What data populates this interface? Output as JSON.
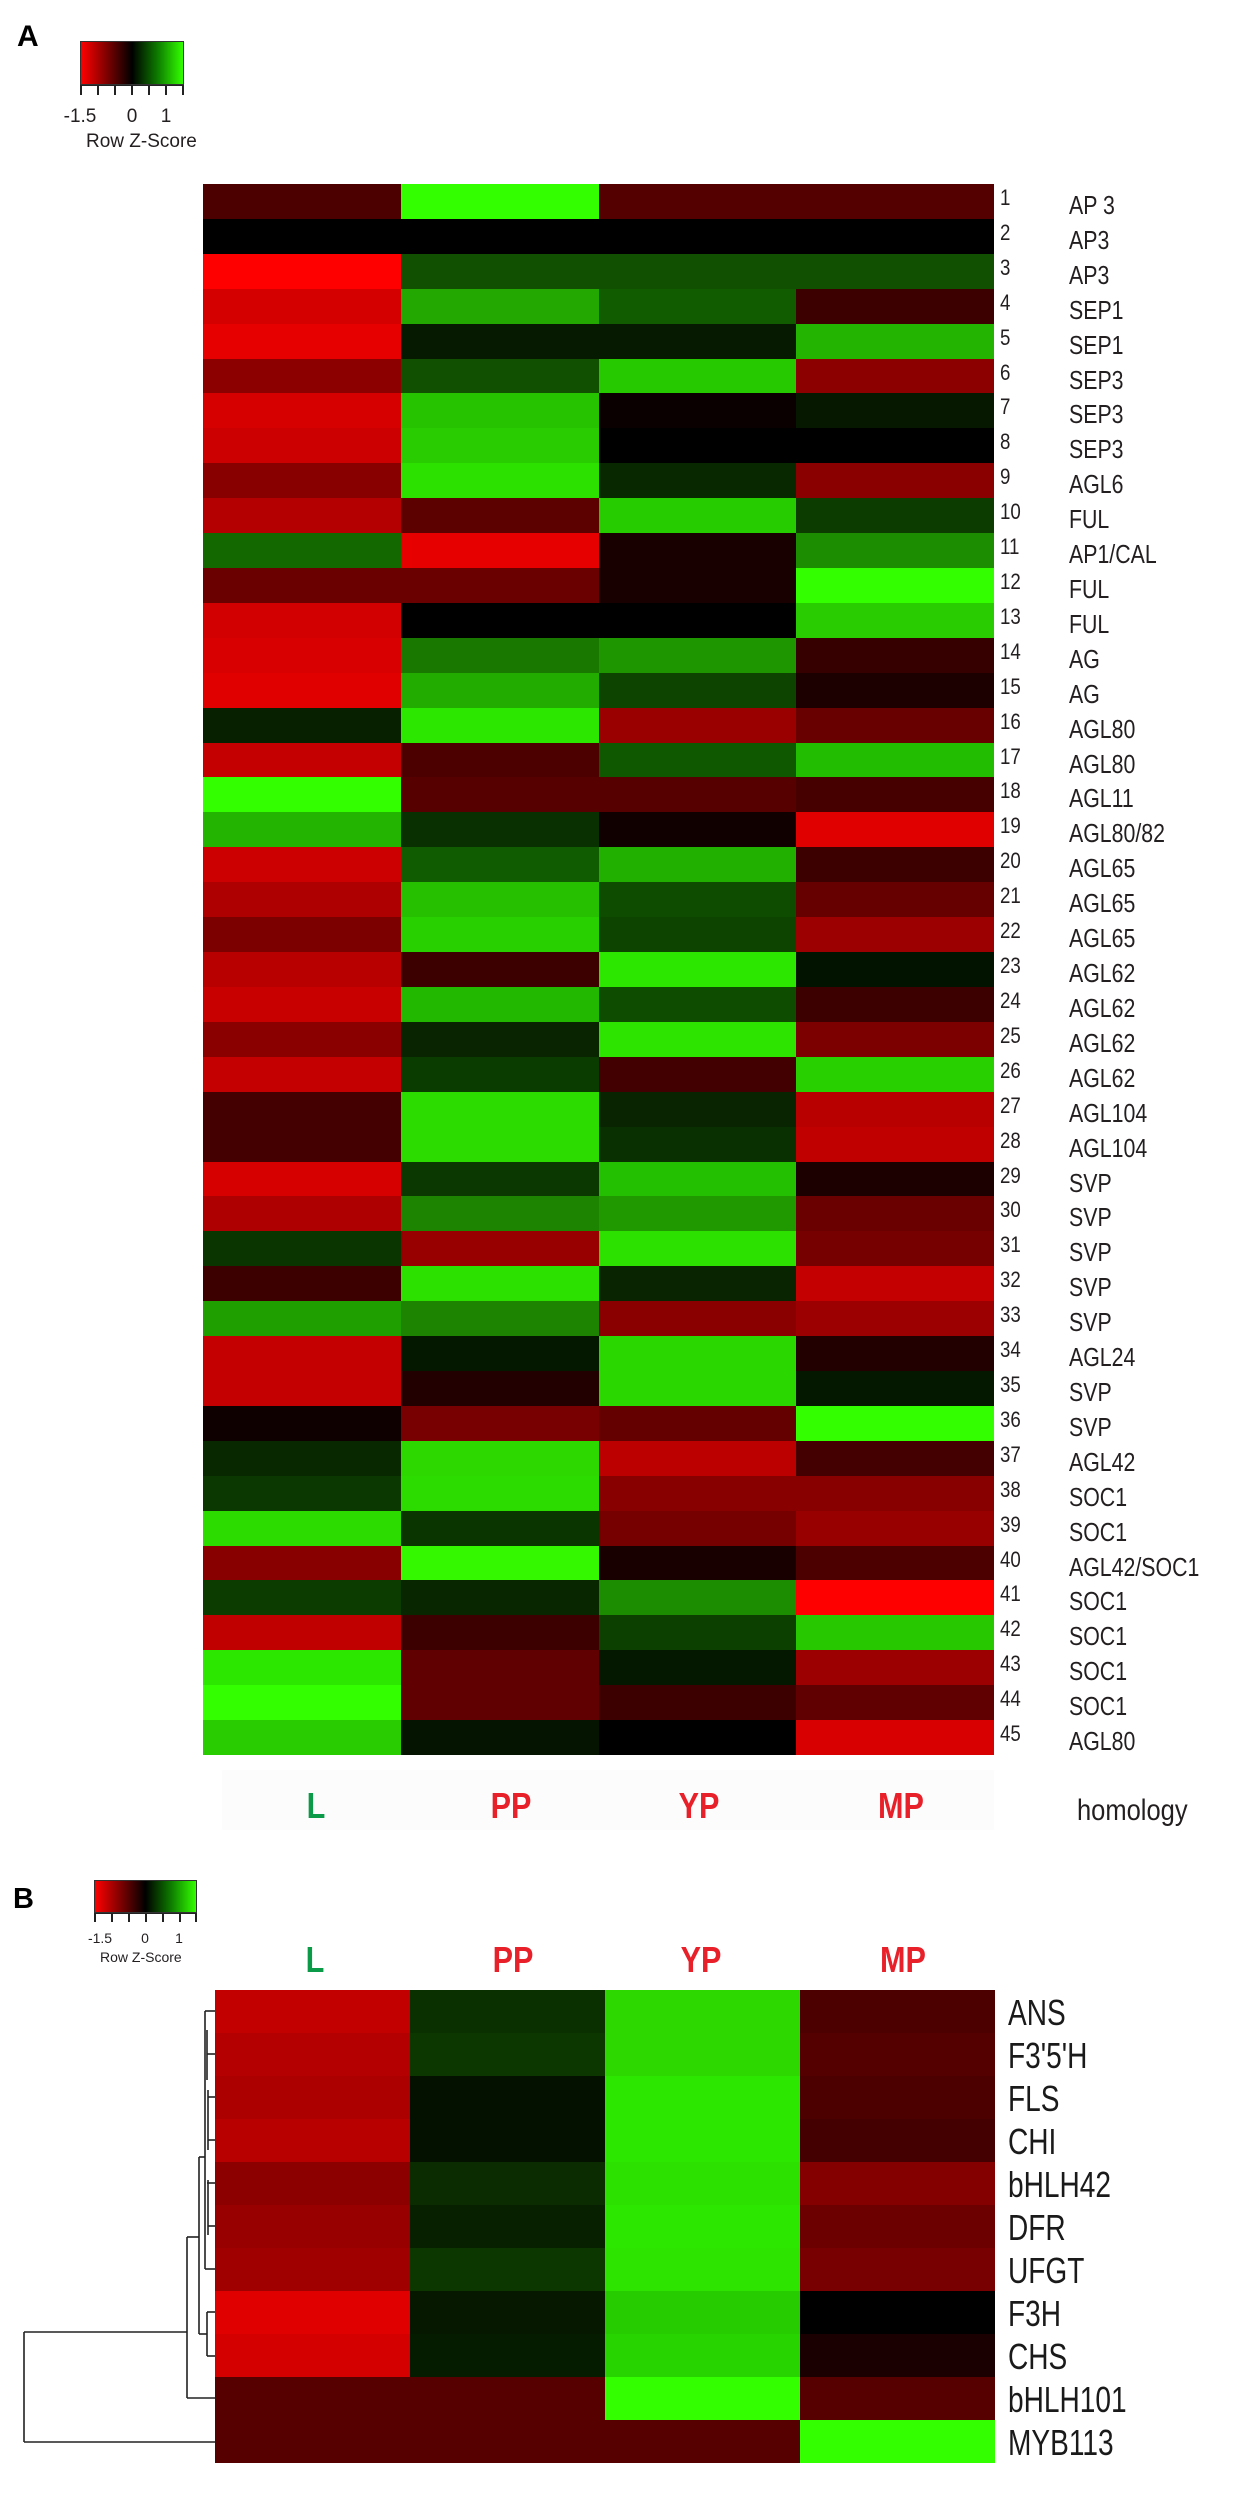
{
  "panel_a": {
    "letter": "A",
    "legend": {
      "title": "Row Z-Score",
      "ticks": [
        "-1.5",
        "0",
        "1"
      ]
    },
    "columns": [
      {
        "label": "L",
        "color": "#0a9a48"
      },
      {
        "label": "PP",
        "color": "#e8202a"
      },
      {
        "label": "YP",
        "color": "#e8202a"
      },
      {
        "label": "MP",
        "color": "#e8202a"
      }
    ],
    "label_column_title": "homology"
  },
  "panel_b": {
    "letter": "B",
    "legend": {
      "title": "Row Z-Score",
      "ticks": [
        "-1.5",
        "0",
        "1"
      ]
    },
    "columns": [
      {
        "label": "L",
        "color": "#0a9a48"
      },
      {
        "label": "PP",
        "color": "#e8202a"
      },
      {
        "label": "YP",
        "color": "#e8202a"
      },
      {
        "label": "MP",
        "color": "#e8202a"
      }
    ]
  },
  "chart_data": [
    {
      "type": "heatmap",
      "title": "A",
      "legend": {
        "title": "Row Z-Score",
        "ticks": [
          -1.5,
          0,
          1
        ],
        "range": [
          -1.5,
          1.5
        ],
        "low_color": "#ff0000",
        "mid_color": "#000000",
        "high_color": "#33ff00"
      },
      "columns": [
        "L",
        "PP",
        "YP",
        "MP"
      ],
      "rows": [
        {
          "id": 1,
          "label": "AP 3",
          "colors": [
            "#4d0000",
            "#33ff00",
            "#550000",
            "#550000"
          ]
        },
        {
          "id": 2,
          "label": "AP3",
          "colors": [
            "#000000",
            "#000000",
            "#000000",
            "#000000"
          ]
        },
        {
          "id": 3,
          "label": "AP3",
          "colors": [
            "#ff0000",
            "#105000",
            "#105000",
            "#105000"
          ]
        },
        {
          "id": 4,
          "label": "SEP1",
          "colors": [
            "#d40000",
            "#22a800",
            "#125c00",
            "#3c0000"
          ]
        },
        {
          "id": 5,
          "label": "SEP1",
          "colors": [
            "#e60000",
            "#051a00",
            "#051a00",
            "#22b400"
          ]
        },
        {
          "id": 6,
          "label": "SEP3",
          "colors": [
            "#8c0000",
            "#105000",
            "#26c800",
            "#8c0000"
          ]
        },
        {
          "id": 7,
          "label": "SEP3",
          "colors": [
            "#d60000",
            "#26c400",
            "#0a0000",
            "#061800"
          ]
        },
        {
          "id": 8,
          "label": "SEP3",
          "colors": [
            "#cc0000",
            "#28cc00",
            "#000000",
            "#000000"
          ]
        },
        {
          "id": 9,
          "label": "AGL6",
          "colors": [
            "#880000",
            "#2ce000",
            "#082800",
            "#8a0000"
          ]
        },
        {
          "id": 10,
          "label": "FUL",
          "colors": [
            "#b40000",
            "#5c0000",
            "#26cc00",
            "#0c3c00"
          ]
        },
        {
          "id": 11,
          "label": "AP1/CAL",
          "colors": [
            "#146800",
            "#e60000",
            "#180000",
            "#1c8c00"
          ]
        },
        {
          "id": 12,
          "label": "FUL",
          "colors": [
            "#6a0000",
            "#6a0000",
            "#180000",
            "#33ff00"
          ]
        },
        {
          "id": 13,
          "label": "FUL",
          "colors": [
            "#d20000",
            "#000000",
            "#000000",
            "#28cc00"
          ]
        },
        {
          "id": 14,
          "label": "AG",
          "colors": [
            "#d80000",
            "#187800",
            "#1e9600",
            "#360000"
          ]
        },
        {
          "id": 15,
          "label": "AG",
          "colors": [
            "#e00000",
            "#22ac00",
            "#0c4400",
            "#1c0000"
          ]
        },
        {
          "id": 16,
          "label": "AGL80",
          "colors": [
            "#062000",
            "#2ce800",
            "#9a0000",
            "#680000"
          ]
        },
        {
          "id": 17,
          "label": "AGL80",
          "colors": [
            "#c40000",
            "#4c0000",
            "#105800",
            "#22bc00"
          ]
        },
        {
          "id": 18,
          "label": "AGL11",
          "colors": [
            "#33ff00",
            "#560000",
            "#560000",
            "#460000"
          ]
        },
        {
          "id": 19,
          "label": "AGL80/82",
          "colors": [
            "#22b400",
            "#083000",
            "#100000",
            "#e00000"
          ]
        },
        {
          "id": 20,
          "label": "AGL65",
          "colors": [
            "#cc0000",
            "#105c00",
            "#22b000",
            "#3c0000"
          ]
        },
        {
          "id": 21,
          "label": "AGL65",
          "colors": [
            "#ae0000",
            "#26c000",
            "#0e4c00",
            "#660000"
          ]
        },
        {
          "id": 22,
          "label": "AGL65",
          "colors": [
            "#7c0000",
            "#28d000",
            "#0c4400",
            "#9c0000"
          ]
        },
        {
          "id": 23,
          "label": "AGL62",
          "colors": [
            "#b80000",
            "#3c0000",
            "#2ce800",
            "#021400"
          ]
        },
        {
          "id": 24,
          "label": "AGL62",
          "colors": [
            "#c80000",
            "#22b800",
            "#0e4c00",
            "#3c0000"
          ]
        },
        {
          "id": 25,
          "label": "AGL62",
          "colors": [
            "#8a0000",
            "#082400",
            "#2ce400",
            "#7c0000"
          ]
        },
        {
          "id": 26,
          "label": "AGL62",
          "colors": [
            "#c40000",
            "#0a3c00",
            "#420000",
            "#28d000"
          ]
        },
        {
          "id": 27,
          "label": "AGL104",
          "colors": [
            "#440000",
            "#2cdc00",
            "#082400",
            "#b80000"
          ]
        },
        {
          "id": 28,
          "label": "AGL104",
          "colors": [
            "#440000",
            "#2cdc00",
            "#083000",
            "#c00000"
          ]
        },
        {
          "id": 29,
          "label": "SVP",
          "colors": [
            "#d60000",
            "#0a3800",
            "#22c000",
            "#1c0000"
          ]
        },
        {
          "id": 30,
          "label": "SVP",
          "colors": [
            "#ae0000",
            "#1c8400",
            "#209800",
            "#6a0000"
          ]
        },
        {
          "id": 31,
          "label": "SVP",
          "colors": [
            "#0a3400",
            "#980000",
            "#2ce000",
            "#760000"
          ]
        },
        {
          "id": 32,
          "label": "SVP",
          "colors": [
            "#3c0000",
            "#2ce000",
            "#082400",
            "#c40000"
          ]
        },
        {
          "id": 33,
          "label": "SVP",
          "colors": [
            "#20a000",
            "#1c8400",
            "#8a0000",
            "#9c0000"
          ]
        },
        {
          "id": 34,
          "label": "AGL24",
          "colors": [
            "#c40000",
            "#041800",
            "#2ad800",
            "#220000"
          ]
        },
        {
          "id": 35,
          "label": "SVP",
          "colors": [
            "#c40000",
            "#220000",
            "#2ad800",
            "#041800"
          ]
        },
        {
          "id": 36,
          "label": "SVP",
          "colors": [
            "#0e0000",
            "#780000",
            "#640000",
            "#33ff00"
          ]
        },
        {
          "id": 37,
          "label": "AGL42",
          "colors": [
            "#082800",
            "#2cd800",
            "#bc0000",
            "#440000"
          ]
        },
        {
          "id": 38,
          "label": "SOC1",
          "colors": [
            "#0a3800",
            "#2cdc00",
            "#880000",
            "#880000"
          ]
        },
        {
          "id": 39,
          "label": "SOC1",
          "colors": [
            "#2cdc00",
            "#0a3400",
            "#760000",
            "#980000"
          ]
        },
        {
          "id": 40,
          "label": "AGL42/SOC1",
          "colors": [
            "#880000",
            "#33f800",
            "#180000",
            "#4c0000"
          ]
        },
        {
          "id": 41,
          "label": "SOC1",
          "colors": [
            "#0c3c00",
            "#082600",
            "#1c8c00",
            "#ff0000"
          ]
        },
        {
          "id": 42,
          "label": "SOC1",
          "colors": [
            "#c00000",
            "#3c0000",
            "#0c4000",
            "#28c800"
          ]
        },
        {
          "id": 43,
          "label": "SOC1",
          "colors": [
            "#2ce800",
            "#600000",
            "#041800",
            "#9c0000"
          ]
        },
        {
          "id": 44,
          "label": "SOC1",
          "colors": [
            "#33ff00",
            "#600000",
            "#3c0000",
            "#600000"
          ]
        },
        {
          "id": 45,
          "label": "AGL80",
          "colors": [
            "#28cc00",
            "#041400",
            "#000000",
            "#d80000"
          ]
        }
      ]
    },
    {
      "type": "heatmap",
      "title": "B",
      "legend": {
        "title": "Row Z-Score",
        "ticks": [
          -1.5,
          0,
          1
        ],
        "range": [
          -1.5,
          1.5
        ],
        "low_color": "#ff0000",
        "mid_color": "#000000",
        "high_color": "#33ff00"
      },
      "columns": [
        "L",
        "PP",
        "YP",
        "MP"
      ],
      "row_dendrogram": true,
      "rows": [
        {
          "label": "ANS",
          "colors": [
            "#c20000",
            "#0a3000",
            "#2cd800",
            "#4c0000"
          ]
        },
        {
          "label": "F3'5'H",
          "colors": [
            "#b40000",
            "#0c3800",
            "#2cd800",
            "#540000"
          ]
        },
        {
          "label": "FLS",
          "colors": [
            "#ac0000",
            "#041000",
            "#2ce800",
            "#4c0000"
          ]
        },
        {
          "label": "CHI",
          "colors": [
            "#b80000",
            "#041000",
            "#2ce800",
            "#440000"
          ]
        },
        {
          "label": "bHLH42",
          "colors": [
            "#8c0000",
            "#0a2c00",
            "#2ce000",
            "#840000"
          ]
        },
        {
          "label": "DFR",
          "colors": [
            "#980000",
            "#062000",
            "#2ce800",
            "#6c0000"
          ]
        },
        {
          "label": "UFGT",
          "colors": [
            "#a00000",
            "#0c3800",
            "#2ce400",
            "#780000"
          ]
        },
        {
          "label": "F3H",
          "colors": [
            "#e00000",
            "#061800",
            "#26cc00",
            "#000000"
          ]
        },
        {
          "label": "CHS",
          "colors": [
            "#d40000",
            "#061c00",
            "#28d400",
            "#1a0000"
          ]
        },
        {
          "label": "bHLH101",
          "colors": [
            "#560000",
            "#560000",
            "#33ff00",
            "#560000"
          ]
        },
        {
          "label": "MYB113",
          "colors": [
            "#560000",
            "#560000",
            "#560000",
            "#33ff00"
          ]
        }
      ]
    }
  ]
}
